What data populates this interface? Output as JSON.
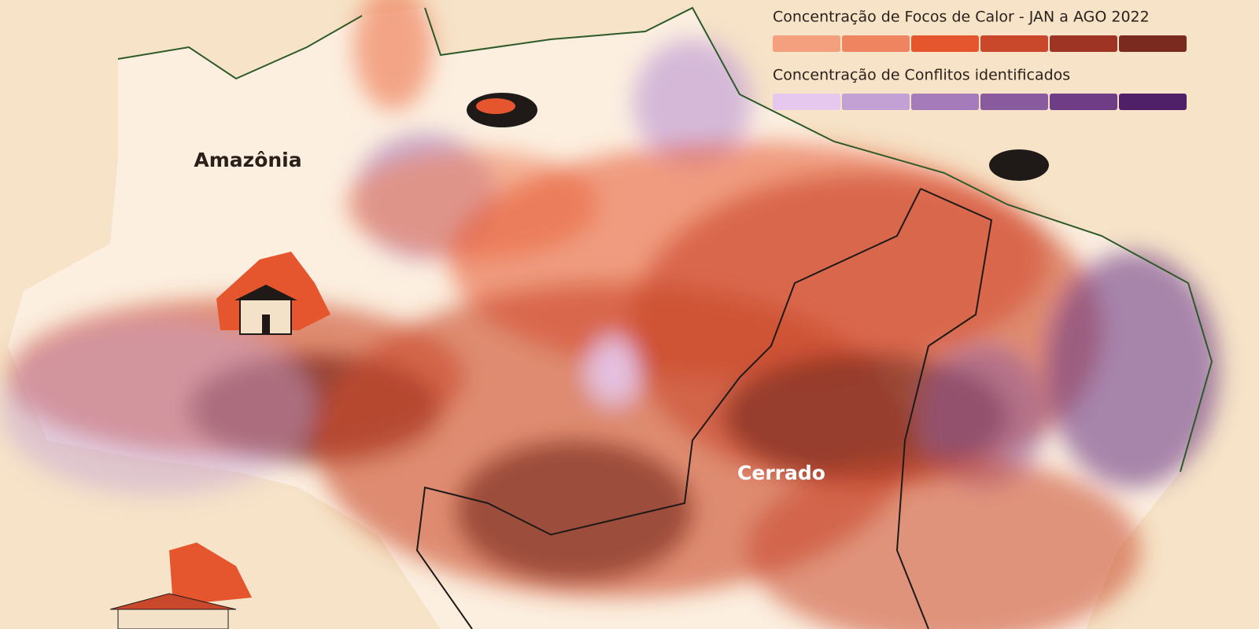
{
  "legend": [
    {
      "title": "Concentração de Focos de Calor - JAN a AGO 2022",
      "colors": [
        "#f4a07f",
        "#ef8560",
        "#e5552e",
        "#c9472a",
        "#9e3424",
        "#7a2a1f"
      ]
    },
    {
      "title": "Concentração de Conflitos identificados",
      "colors": [
        "#e6c8ee",
        "#c4a1d4",
        "#a57bb9",
        "#8a5a9e",
        "#6e3d86",
        "#4f2068"
      ]
    }
  ],
  "labels": {
    "amazonia": "Amazônia",
    "cerrado": "Cerrado"
  }
}
